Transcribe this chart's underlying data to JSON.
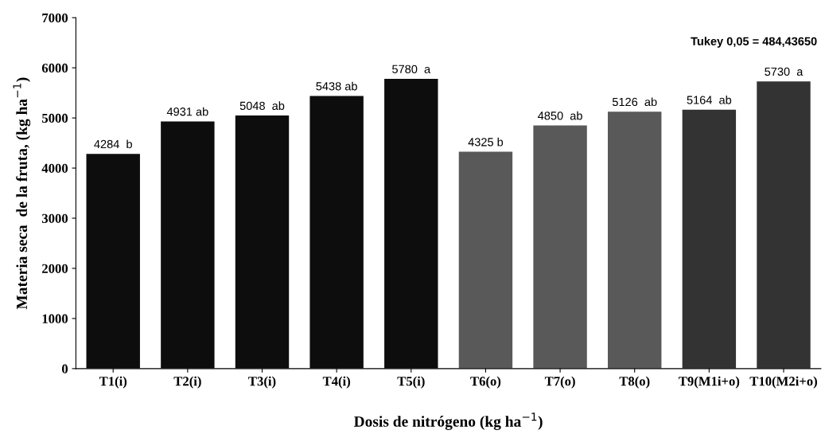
{
  "chart_data": {
    "type": "bar",
    "categories": [
      "T1(i)",
      "T2(i)",
      "T3(i)",
      "T4(i)",
      "T5(i)",
      "T6(o)",
      "T7(o)",
      "T8(o)",
      "T9(M1i+o)",
      "T10(M2i+o)"
    ],
    "values": [
      4284,
      4931,
      5048,
      5438,
      5780,
      4325,
      4850,
      5126,
      5164,
      5730
    ],
    "colors": [
      "#0d0d0d",
      "#0d0d0d",
      "#0d0d0d",
      "#0d0d0d",
      "#0d0d0d",
      "#595959",
      "#595959",
      "#595959",
      "#333333",
      "#333333"
    ],
    "value_labels": [
      "4284  b",
      "4931 ab",
      "5048  ab",
      "5438 ab",
      "5780  a",
      "4325 b",
      "4850  ab",
      "5126  ab",
      "5164  ab",
      "5730  a"
    ],
    "xlabel": "Dosis de nitrógeno (kg ha$^{−1}$)",
    "ylabel": "Materia seca  de la fruta, (kg ha$^{−1}$)",
    "ylim": [
      0,
      7000
    ],
    "yticks": [
      0,
      1000,
      2000,
      3000,
      4000,
      5000,
      6000,
      7000
    ],
    "annotations": [
      "Tukey 0,05 = 484,43650"
    ],
    "grid": false,
    "legend": false
  }
}
